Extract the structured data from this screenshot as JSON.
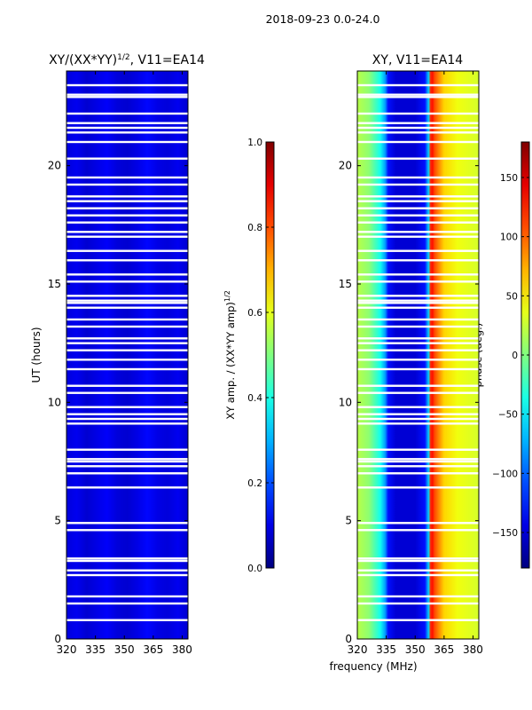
{
  "suptitle": "2018-09-23 0.0-24.0",
  "chart_data": [
    {
      "type": "heatmap",
      "title_main": "XY/(XX*YY)",
      "title_sup": "1/2",
      "title_rest": ", V11=EA14",
      "xlabel": "",
      "ylabel": "UT (hours)",
      "xlim": [
        320,
        383
      ],
      "ylim": [
        0,
        24
      ],
      "xticks": [
        320,
        335,
        350,
        365,
        380
      ],
      "yticks": [
        0,
        5,
        10,
        15,
        20
      ],
      "colorbar": {
        "label_main": "XY amp. / (XX*YY amp)",
        "label_sup": "1/2",
        "range": [
          0.0,
          1.0
        ],
        "ticks": [
          "0.0",
          "0.2",
          "0.4",
          "0.6",
          "0.8",
          "1.0"
        ],
        "tick_values": [
          0.0,
          0.2,
          0.4,
          0.6,
          0.8,
          1.0
        ]
      },
      "typical_value": 0.08
    },
    {
      "type": "heatmap",
      "title": "XY, V11=EA14",
      "xlabel": "frequency (MHz)",
      "ylabel": "",
      "xlim": [
        320,
        383
      ],
      "ylim": [
        0,
        24
      ],
      "xticks": [
        320,
        335,
        350,
        365,
        380
      ],
      "yticks": [
        0,
        5,
        10,
        15,
        20
      ],
      "colorbar": {
        "label": "phase (deg.)",
        "range": [
          -180,
          180
        ],
        "ticks": [
          "−150",
          "−100",
          "−50",
          "0",
          "50",
          "100",
          "150"
        ],
        "tick_values": [
          -150,
          -100,
          -50,
          0,
          50,
          100,
          150
        ]
      },
      "phase_profile": {
        "freq_mhz": [
          320,
          326,
          332,
          334.5,
          336,
          340,
          350,
          355,
          357,
          358,
          359,
          360,
          365,
          372,
          383
        ],
        "phase_deg": [
          20,
          5,
          -40,
          -80,
          -130,
          -150,
          -150,
          -130,
          -60,
          120,
          130,
          110,
          60,
          40,
          30
        ]
      }
    }
  ],
  "flagged_ut_hours": [
    0.8,
    1.5,
    1.8,
    2.7,
    2.9,
    3.3,
    3.4,
    4.6,
    4.9,
    6.4,
    7.0,
    7.3,
    7.5,
    7.6,
    8.0,
    9.1,
    9.3,
    9.5,
    9.8,
    10.4,
    10.7,
    11.4,
    11.8,
    12.2,
    12.5,
    12.7,
    13.2,
    13.5,
    14.0,
    14.2,
    14.3,
    14.5,
    15.1,
    15.4,
    16.0,
    16.4,
    17.0,
    17.2,
    17.6,
    17.9,
    18.2,
    18.5,
    18.7,
    19.2,
    19.5,
    20.3,
    21.0,
    21.4,
    21.6,
    21.8,
    22.2,
    22.9,
    23.0,
    23.4
  ]
}
